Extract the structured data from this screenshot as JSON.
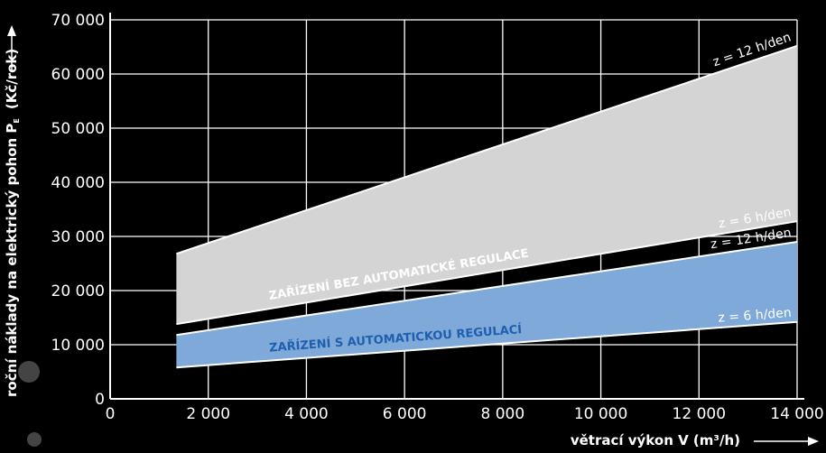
{
  "chart_data": {
    "type": "band",
    "xlabel": "větrací výkon V (m³/h)",
    "ylabel": {
      "text": "roční náklady na elektrický pohon P",
      "subscript": "E",
      "unit": "(Kč/rok)"
    },
    "x": [
      1350,
      14000
    ],
    "bands": [
      {
        "name": "ZAŘÍZENÍ BEZ AUTOMATICKÉ REGULACE",
        "color": "#d4d4d4",
        "label_color": "#ffffff",
        "lower": {
          "name": "z = 6 h/den",
          "values": [
            13800,
            32800
          ]
        },
        "upper": {
          "name": "z = 12 h/den",
          "values": [
            26800,
            65200
          ]
        }
      },
      {
        "name": "ZAŘÍZENÍ S AUTOMATICKOU REGULACÍ",
        "color": "#7ea9d8",
        "label_color": "#1f5fb0",
        "lower": {
          "name": "z = 6 h/den",
          "values": [
            5800,
            14200
          ]
        },
        "upper": {
          "name": "z = 12 h/den",
          "values": [
            11800,
            29000
          ]
        }
      }
    ],
    "xlim": [
      0,
      14000
    ],
    "xticks": [
      0,
      {
        "value": 2000,
        "label": "2 000"
      },
      {
        "value": 4000,
        "label": "4 000"
      },
      {
        "value": 6000,
        "label": "6 000"
      },
      {
        "value": 8000,
        "label": "8 000"
      },
      {
        "value": 10000,
        "label": "10 000"
      },
      {
        "value": 12000,
        "label": "12 000"
      },
      {
        "value": 14000,
        "label": "14 000"
      }
    ],
    "ylim": [
      0,
      70000
    ],
    "yticks": [
      0,
      {
        "value": 10000,
        "label": "10 000"
      },
      {
        "value": 20000,
        "label": "20 000"
      },
      {
        "value": 30000,
        "label": "30 000"
      },
      {
        "value": 40000,
        "label": "40 000"
      },
      {
        "value": 50000,
        "label": "50 000"
      },
      {
        "value": 60000,
        "label": "60 000"
      },
      {
        "value": 70000,
        "label": "70 000"
      }
    ],
    "grid": true
  }
}
